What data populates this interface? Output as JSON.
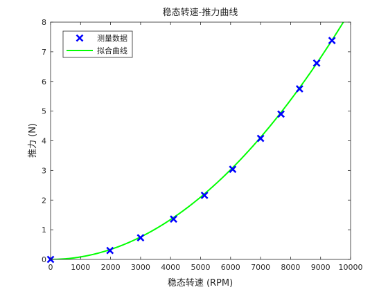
{
  "chart_data": {
    "type": "scatter",
    "title": "稳态转速-推力曲线",
    "xlabel": "稳态转速 (RPM)",
    "ylabel": "推力 (N)",
    "xlim": [
      0,
      10000
    ],
    "ylim": [
      0,
      8
    ],
    "xticks": [
      0,
      1000,
      2000,
      3000,
      4000,
      5000,
      6000,
      7000,
      8000,
      9000,
      10000
    ],
    "yticks": [
      0,
      1,
      2,
      3,
      4,
      5,
      6,
      7,
      8
    ],
    "grid": false,
    "legend_position": "top-left",
    "series": [
      {
        "name": "测量数据",
        "kind": "scatter",
        "marker": "x",
        "color": "#0000ff",
        "x": [
          0,
          1980,
          3000,
          4100,
          5130,
          6070,
          7000,
          7680,
          8300,
          8870,
          9380
        ],
        "y": [
          0,
          0.3,
          0.73,
          1.36,
          2.16,
          3.04,
          4.08,
          4.9,
          5.75,
          6.62,
          7.38
        ]
      },
      {
        "name": "拟合曲线",
        "kind": "line",
        "color": "#00ff00",
        "coef": 8.4e-08,
        "exponent": 2
      }
    ]
  }
}
